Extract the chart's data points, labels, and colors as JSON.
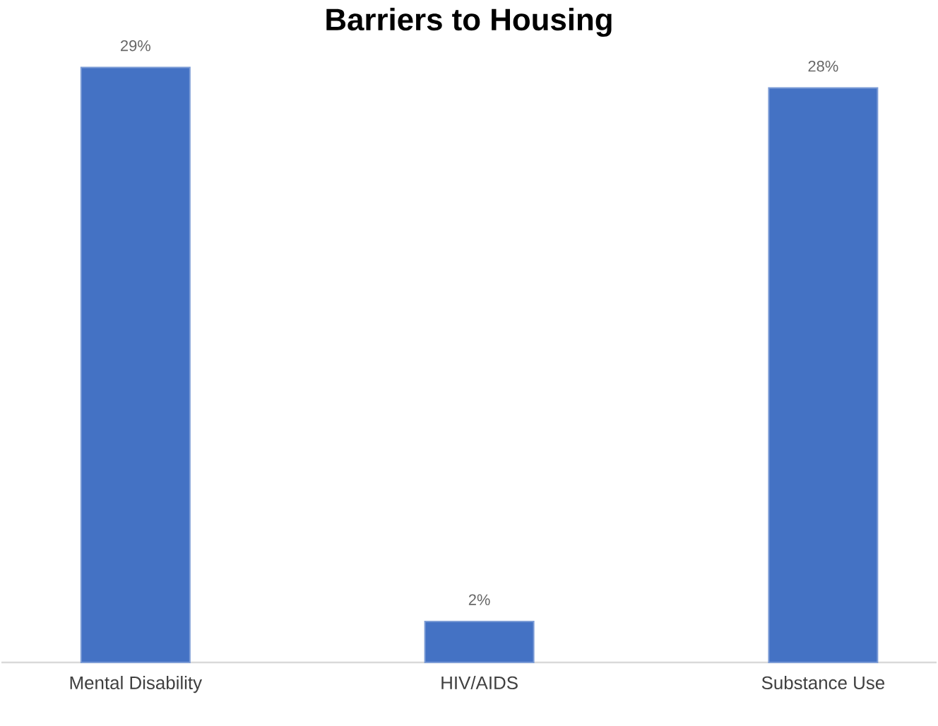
{
  "chart_data": {
    "type": "bar",
    "title": "Barriers to Housing",
    "categories": [
      "Mental Disability",
      "HIV/AIDS",
      "Substance Use"
    ],
    "values": [
      29,
      2,
      28
    ],
    "color": "#4472c4",
    "value_labels": [
      "29%",
      "2%",
      "28%"
    ]
  }
}
